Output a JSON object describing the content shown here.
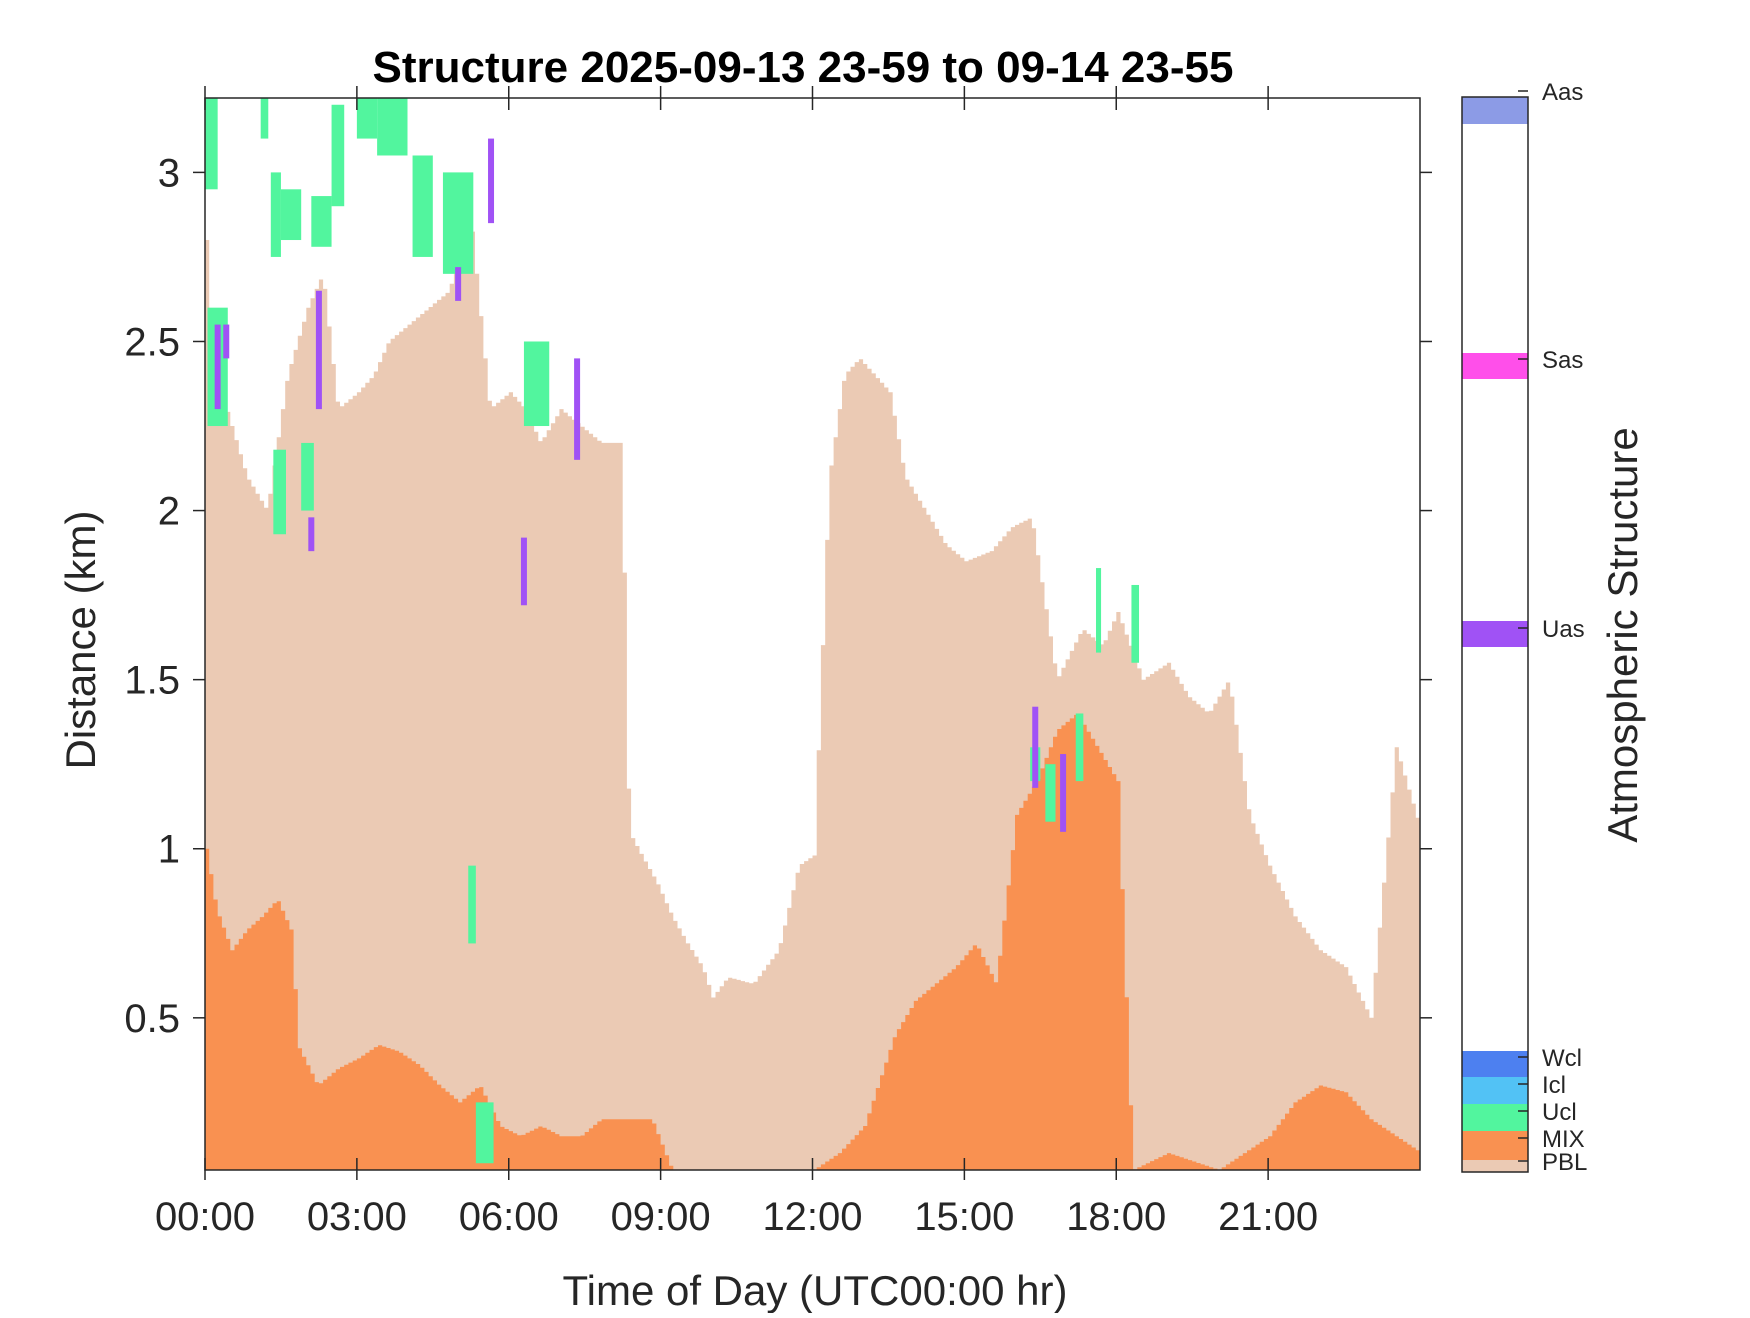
{
  "chart_data": {
    "type": "heatmap",
    "title": "Structure 2025-09-13 23-59 to 09-14 23-55",
    "xlabel": "Time of Day (UTC00:00 hr)",
    "ylabel": "Distance (km)",
    "colorbar_label": "Atmospheric Structure",
    "x_unit": "hours",
    "xlim": [
      0,
      24
    ],
    "ylim": [
      0.05,
      3.22
    ],
    "x_ticks": [
      {
        "value": 0,
        "label": "00:00"
      },
      {
        "value": 3,
        "label": "03:00"
      },
      {
        "value": 6,
        "label": "06:00"
      },
      {
        "value": 9,
        "label": "09:00"
      },
      {
        "value": 12,
        "label": "12:00"
      },
      {
        "value": 15,
        "label": "15:00"
      },
      {
        "value": 18,
        "label": "18:00"
      },
      {
        "value": 21,
        "label": "21:00"
      }
    ],
    "y_ticks": [
      {
        "value": 0.5,
        "label": "0.5"
      },
      {
        "value": 1,
        "label": "1"
      },
      {
        "value": 1.5,
        "label": "1.5"
      },
      {
        "value": 2,
        "label": "2"
      },
      {
        "value": 2.5,
        "label": "2.5"
      },
      {
        "value": 3,
        "label": "3"
      }
    ],
    "grid": false,
    "legend_placement": "colorbar-right",
    "colorbar": [
      {
        "label": "Aas",
        "color": "#8C9BE6",
        "position": "top"
      },
      {
        "label": "Sas",
        "color": "#FF4FEA",
        "position": "upper"
      },
      {
        "label": "Uas",
        "color": "#A052F5",
        "position": "middle"
      },
      {
        "label": "Wcl",
        "color": "#4D80F0",
        "position": "bottom"
      },
      {
        "label": "Icl",
        "color": "#52C2F5",
        "position": "bottom"
      },
      {
        "label": "Ucl",
        "color": "#52F59E",
        "position": "bottom"
      },
      {
        "label": "MIX",
        "color": "#F99151",
        "position": "bottom"
      },
      {
        "label": "PBL",
        "color": "#EBCAB4",
        "position": "bottom"
      }
    ],
    "pbl_top_profile": {
      "time_h": [
        0.0,
        0.1,
        0.4,
        0.8,
        1.2,
        1.6,
        2.0,
        2.3,
        2.6,
        3.0,
        3.3,
        3.6,
        4.0,
        4.4,
        4.8,
        5.2,
        5.6,
        6.0,
        6.3,
        6.6,
        7.0,
        7.4,
        7.8,
        8.2,
        8.35,
        8.6,
        8.9,
        9.2,
        9.5,
        9.8,
        10.0,
        10.3,
        10.8,
        11.3,
        11.7,
        12.0,
        12.3,
        12.6,
        12.9,
        13.2,
        13.5,
        13.8,
        14.2,
        14.6,
        15.0,
        15.5,
        15.9,
        16.3,
        16.8,
        17.3,
        17.7,
        18.0,
        18.5,
        19.0,
        19.4,
        19.8,
        20.2,
        20.6,
        21.0,
        21.5,
        22.0,
        22.5,
        23.0,
        23.5,
        24.0
      ],
      "top_km": [
        2.8,
        2.5,
        2.3,
        2.1,
        2.0,
        2.4,
        2.6,
        2.7,
        2.3,
        2.35,
        2.4,
        2.5,
        2.55,
        2.6,
        2.65,
        2.9,
        2.3,
        2.35,
        2.3,
        2.2,
        2.3,
        2.25,
        2.2,
        2.2,
        1.05,
        0.98,
        0.9,
        0.8,
        0.72,
        0.65,
        0.56,
        0.62,
        0.6,
        0.7,
        0.95,
        0.98,
        2.1,
        2.4,
        2.45,
        2.4,
        2.35,
        2.1,
        2.0,
        1.9,
        1.85,
        1.88,
        1.95,
        1.98,
        1.5,
        1.65,
        1.6,
        1.7,
        1.5,
        1.55,
        1.45,
        1.4,
        1.5,
        1.1,
        0.95,
        0.8,
        0.7,
        0.65,
        0.5,
        1.3,
        1.05
      ]
    },
    "mix_top_profile": {
      "time_h": [
        0.0,
        0.2,
        0.5,
        0.8,
        1.1,
        1.4,
        1.7,
        1.8,
        2.2,
        2.6,
        3.0,
        3.4,
        3.8,
        4.2,
        4.6,
        5.0,
        5.4,
        5.8,
        6.2,
        6.6,
        7.0,
        7.4,
        7.8,
        8.2,
        8.8,
        9.2,
        12.0,
        12.5,
        13.0,
        13.6,
        14.0,
        14.4,
        14.8,
        15.2,
        15.6,
        16.0,
        16.4,
        16.8,
        17.2,
        17.6,
        18.0,
        18.3,
        19.0,
        20.0,
        21.0,
        21.5,
        22.0,
        22.5,
        23.0,
        23.5,
        24.0
      ],
      "top_km": [
        1.0,
        0.82,
        0.7,
        0.76,
        0.8,
        0.85,
        0.75,
        0.42,
        0.3,
        0.35,
        0.38,
        0.42,
        0.4,
        0.36,
        0.3,
        0.25,
        0.3,
        0.18,
        0.15,
        0.18,
        0.15,
        0.15,
        0.2,
        0.2,
        0.2,
        0.05,
        0.05,
        0.1,
        0.18,
        0.45,
        0.55,
        0.6,
        0.65,
        0.72,
        0.6,
        1.1,
        1.2,
        1.35,
        1.4,
        1.3,
        1.2,
        0.05,
        0.1,
        0.05,
        0.15,
        0.25,
        0.3,
        0.28,
        0.2,
        0.15,
        0.1
      ]
    },
    "ucl_patches": [
      {
        "t0": 0.0,
        "t1": 0.25,
        "y0": 2.95,
        "y1": 3.22
      },
      {
        "t0": 0.05,
        "t1": 0.45,
        "y0": 2.25,
        "y1": 2.6
      },
      {
        "t0": 1.1,
        "t1": 1.25,
        "y0": 3.1,
        "y1": 3.22
      },
      {
        "t0": 1.3,
        "t1": 1.5,
        "y0": 2.75,
        "y1": 3.0
      },
      {
        "t0": 1.5,
        "t1": 1.9,
        "y0": 2.8,
        "y1": 2.95
      },
      {
        "t0": 1.35,
        "t1": 1.6,
        "y0": 1.93,
        "y1": 2.18
      },
      {
        "t0": 1.9,
        "t1": 2.15,
        "y0": 2.0,
        "y1": 2.2
      },
      {
        "t0": 2.1,
        "t1": 2.5,
        "y0": 2.78,
        "y1": 2.93
      },
      {
        "t0": 2.5,
        "t1": 2.75,
        "y0": 2.9,
        "y1": 3.2
      },
      {
        "t0": 3.0,
        "t1": 3.4,
        "y0": 3.1,
        "y1": 3.22
      },
      {
        "t0": 3.4,
        "t1": 4.0,
        "y0": 3.05,
        "y1": 3.22
      },
      {
        "t0": 4.1,
        "t1": 4.5,
        "y0": 2.75,
        "y1": 3.05
      },
      {
        "t0": 4.7,
        "t1": 5.3,
        "y0": 2.7,
        "y1": 3.0
      },
      {
        "t0": 5.2,
        "t1": 5.35,
        "y0": 0.72,
        "y1": 0.95
      },
      {
        "t0": 5.35,
        "t1": 5.7,
        "y0": 0.07,
        "y1": 0.25
      },
      {
        "t0": 6.3,
        "t1": 6.8,
        "y0": 2.25,
        "y1": 2.5
      },
      {
        "t0": 16.3,
        "t1": 16.5,
        "y0": 1.2,
        "y1": 1.3
      },
      {
        "t0": 16.6,
        "t1": 16.8,
        "y0": 1.08,
        "y1": 1.25
      },
      {
        "t0": 17.2,
        "t1": 17.35,
        "y0": 1.2,
        "y1": 1.4
      },
      {
        "t0": 17.6,
        "t1": 17.7,
        "y0": 1.58,
        "y1": 1.83
      },
      {
        "t0": 18.3,
        "t1": 18.45,
        "y0": 1.55,
        "y1": 1.78
      }
    ],
    "uas_streaks": [
      {
        "t": 0.25,
        "y0": 2.3,
        "y1": 2.55
      },
      {
        "t": 0.42,
        "y0": 2.45,
        "y1": 2.55
      },
      {
        "t": 2.25,
        "y0": 2.3,
        "y1": 2.65
      },
      {
        "t": 2.1,
        "y0": 1.88,
        "y1": 1.98
      },
      {
        "t": 5.0,
        "y0": 2.62,
        "y1": 2.72
      },
      {
        "t": 5.65,
        "y0": 2.85,
        "y1": 3.1
      },
      {
        "t": 6.3,
        "y0": 1.72,
        "y1": 1.92
      },
      {
        "t": 7.35,
        "y0": 2.15,
        "y1": 2.45
      },
      {
        "t": 16.4,
        "y0": 1.18,
        "y1": 1.42
      },
      {
        "t": 16.95,
        "y0": 1.05,
        "y1": 1.28
      }
    ]
  }
}
